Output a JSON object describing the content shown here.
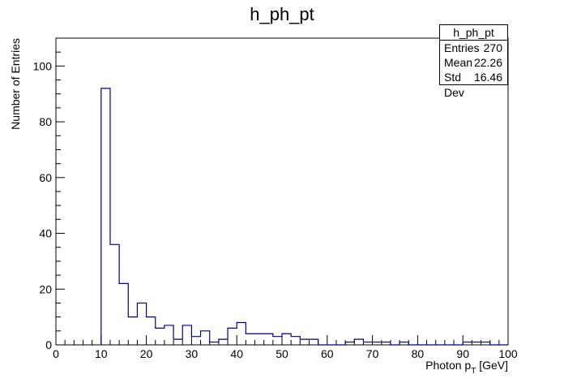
{
  "chart_data": {
    "type": "histogram",
    "title": "h_ph_pt",
    "xlabel_main": "Photon p",
    "xlabel_sub": "T",
    "xlabel_unit": " [GeV]",
    "ylabel": "Number of Entries",
    "xlim": [
      0,
      100
    ],
    "ylim": [
      0,
      110
    ],
    "x_ticks": [
      0,
      10,
      20,
      30,
      40,
      50,
      60,
      70,
      80,
      90,
      100
    ],
    "y_ticks": [
      0,
      20,
      40,
      60,
      80,
      100
    ],
    "bin_width": 2,
    "line_color": "#000080",
    "bins": [
      {
        "x": 10,
        "value": 92
      },
      {
        "x": 12,
        "value": 36
      },
      {
        "x": 14,
        "value": 22
      },
      {
        "x": 16,
        "value": 10
      },
      {
        "x": 18,
        "value": 15
      },
      {
        "x": 20,
        "value": 10
      },
      {
        "x": 22,
        "value": 6
      },
      {
        "x": 24,
        "value": 7
      },
      {
        "x": 26,
        "value": 2
      },
      {
        "x": 28,
        "value": 7
      },
      {
        "x": 30,
        "value": 3
      },
      {
        "x": 32,
        "value": 5
      },
      {
        "x": 34,
        "value": 1
      },
      {
        "x": 36,
        "value": 2
      },
      {
        "x": 38,
        "value": 6
      },
      {
        "x": 40,
        "value": 8
      },
      {
        "x": 42,
        "value": 4
      },
      {
        "x": 44,
        "value": 4
      },
      {
        "x": 46,
        "value": 4
      },
      {
        "x": 48,
        "value": 3
      },
      {
        "x": 50,
        "value": 4
      },
      {
        "x": 52,
        "value": 3
      },
      {
        "x": 54,
        "value": 2
      },
      {
        "x": 56,
        "value": 2
      },
      {
        "x": 58,
        "value": 0
      },
      {
        "x": 60,
        "value": 0
      },
      {
        "x": 62,
        "value": 0
      },
      {
        "x": 64,
        "value": 1
      },
      {
        "x": 66,
        "value": 2
      },
      {
        "x": 68,
        "value": 1
      },
      {
        "x": 70,
        "value": 1
      },
      {
        "x": 72,
        "value": 1
      },
      {
        "x": 74,
        "value": 0
      },
      {
        "x": 76,
        "value": 1
      },
      {
        "x": 78,
        "value": 0
      },
      {
        "x": 80,
        "value": 0
      },
      {
        "x": 82,
        "value": 0
      },
      {
        "x": 84,
        "value": 0
      },
      {
        "x": 86,
        "value": 0
      },
      {
        "x": 88,
        "value": 0
      },
      {
        "x": 90,
        "value": 1
      },
      {
        "x": 92,
        "value": 1
      },
      {
        "x": 94,
        "value": 1
      },
      {
        "x": 96,
        "value": 0
      },
      {
        "x": 98,
        "value": 0
      }
    ],
    "stats": {
      "title": "h_ph_pt",
      "rows": [
        {
          "label": "Entries",
          "value": "270"
        },
        {
          "label": "Mean",
          "value": "22.26"
        },
        {
          "label": "Std Dev",
          "value": "16.46"
        }
      ]
    }
  }
}
